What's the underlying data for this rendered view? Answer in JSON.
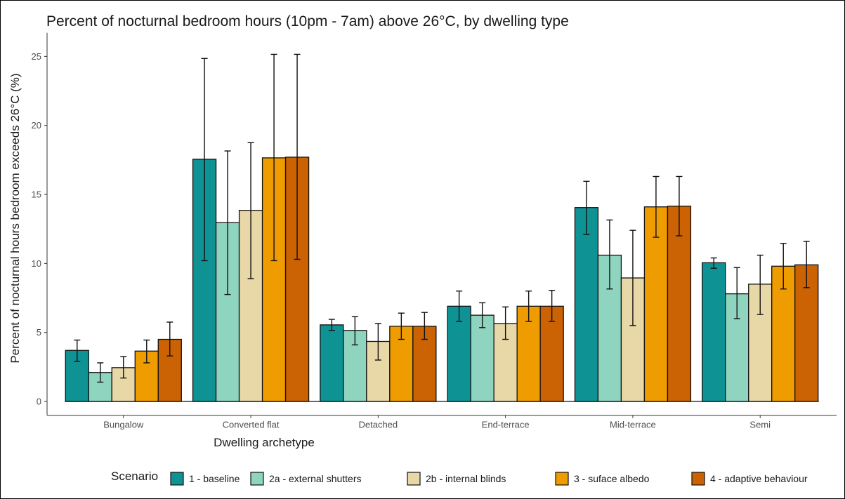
{
  "chart_data": {
    "type": "bar",
    "title": "Percent of nocturnal bedroom hours (10pm - 7am) above 26°C, by dwelling type",
    "xlabel": "Dwelling archetype",
    "ylabel": "Percent of nocturnal hours bedroom exceeds 26°C (%)",
    "ylim": [
      -1,
      26
    ],
    "yticks": [
      "0",
      "5",
      "10",
      "15",
      "20",
      "25"
    ],
    "grid": false,
    "legend_position": "bottom",
    "legend_title": "Scenario",
    "categories": [
      "Bungalow",
      "Converted flat",
      "Detached",
      "End-terrace",
      "Mid-terrace",
      "Semi"
    ],
    "series": [
      {
        "name": "1 - baseline",
        "color": "#0f9294",
        "values": [
          3.7,
          17.55,
          5.55,
          6.9,
          14.05,
          10.05
        ],
        "err_low": [
          2.9,
          10.2,
          5.15,
          5.8,
          12.1,
          9.65
        ],
        "err_high": [
          4.45,
          24.85,
          5.95,
          8.0,
          15.95,
          10.4
        ]
      },
      {
        "name": "2a - external shutters",
        "color": "#8fd4bf",
        "values": [
          2.1,
          12.95,
          5.15,
          6.25,
          10.6,
          7.8
        ],
        "err_low": [
          1.4,
          7.75,
          4.1,
          5.35,
          8.15,
          6.0
        ],
        "err_high": [
          2.8,
          18.15,
          6.15,
          7.15,
          13.15,
          9.7
        ]
      },
      {
        "name": "2b - internal blinds",
        "color": "#e8d7a7",
        "values": [
          2.45,
          13.85,
          4.35,
          5.65,
          8.95,
          8.5
        ],
        "err_low": [
          1.7,
          8.9,
          3.0,
          4.5,
          5.5,
          6.3
        ],
        "err_high": [
          3.25,
          18.75,
          5.65,
          6.85,
          12.4,
          10.6
        ]
      },
      {
        "name": "3 - suface albedo",
        "color": "#ef9c00",
        "values": [
          3.65,
          17.65,
          5.45,
          6.9,
          14.1,
          9.8
        ],
        "err_low": [
          2.8,
          10.2,
          4.5,
          5.8,
          11.9,
          8.15
        ],
        "err_high": [
          4.45,
          25.15,
          6.4,
          8.0,
          16.3,
          11.45
        ]
      },
      {
        "name": "4 - adaptive behaviour",
        "color": "#cb6203",
        "values": [
          4.5,
          17.7,
          5.45,
          6.9,
          14.15,
          9.9
        ],
        "err_low": [
          3.3,
          10.3,
          4.5,
          5.8,
          12.0,
          8.25
        ],
        "err_high": [
          5.75,
          25.15,
          6.45,
          8.05,
          16.3,
          11.6
        ]
      }
    ]
  }
}
